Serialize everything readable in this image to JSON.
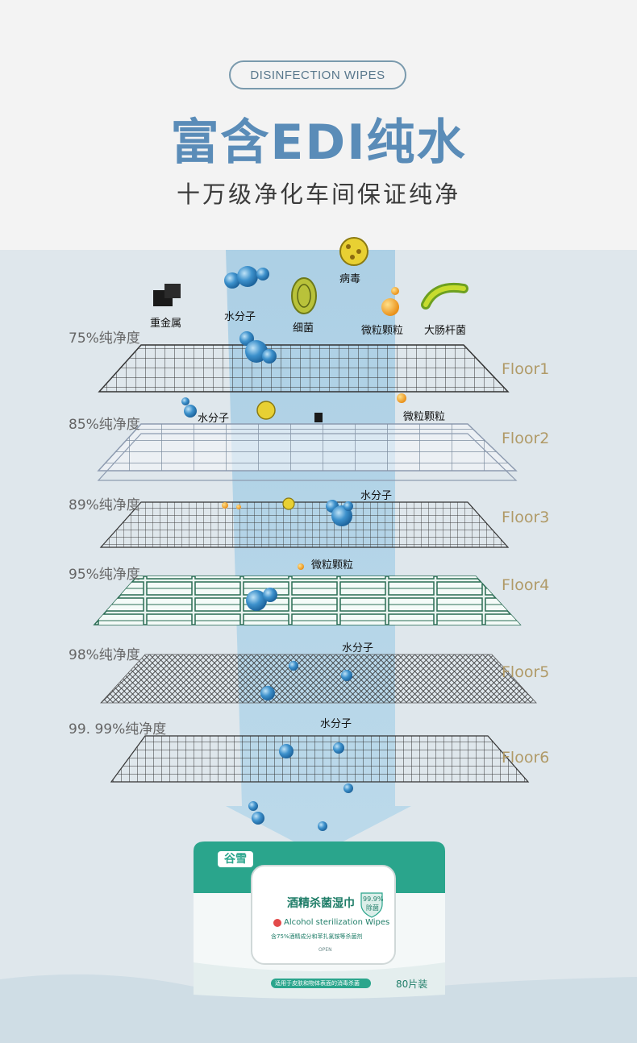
{
  "header": {
    "tag": "DISINFECTION WIPES",
    "title": "富含EDI纯水",
    "subtitle": "十万级净化车间保证纯净"
  },
  "layers": [
    {
      "purity": "75%纯净度",
      "floor": "Floor1"
    },
    {
      "purity": "85%纯净度",
      "floor": "Floor2"
    },
    {
      "purity": "89%纯净度",
      "floor": "Floor3"
    },
    {
      "purity": "95%纯净度",
      "floor": "Floor4"
    },
    {
      "purity": "98%纯净度",
      "floor": "Floor5"
    },
    {
      "purity": "99. 99%纯净度",
      "floor": "Floor6"
    }
  ],
  "particles": {
    "heavy_metal": "重金属",
    "water": "水分子",
    "bacteria": "细菌",
    "virus": "病毒",
    "particle": "微粒颗粒",
    "ecoli": "大肠杆菌"
  },
  "product": {
    "brand": "谷雪",
    "name": "酒精杀菌湿巾",
    "badge": "99.9%",
    "badge_sub": "除菌",
    "en_name": "Alcohol sterilization Wipes",
    "formula": "含75%酒精成分和苯扎氯铵等杀菌剂",
    "open": "OPEN",
    "usage": "适用于皮肤和物体表面的消毒杀菌",
    "count": "80片装"
  },
  "colors": {
    "title": "#5a8cb8",
    "floor_label": "#b09a67",
    "pack_green": "#2aa58c",
    "beam": "#a9cfe6"
  }
}
